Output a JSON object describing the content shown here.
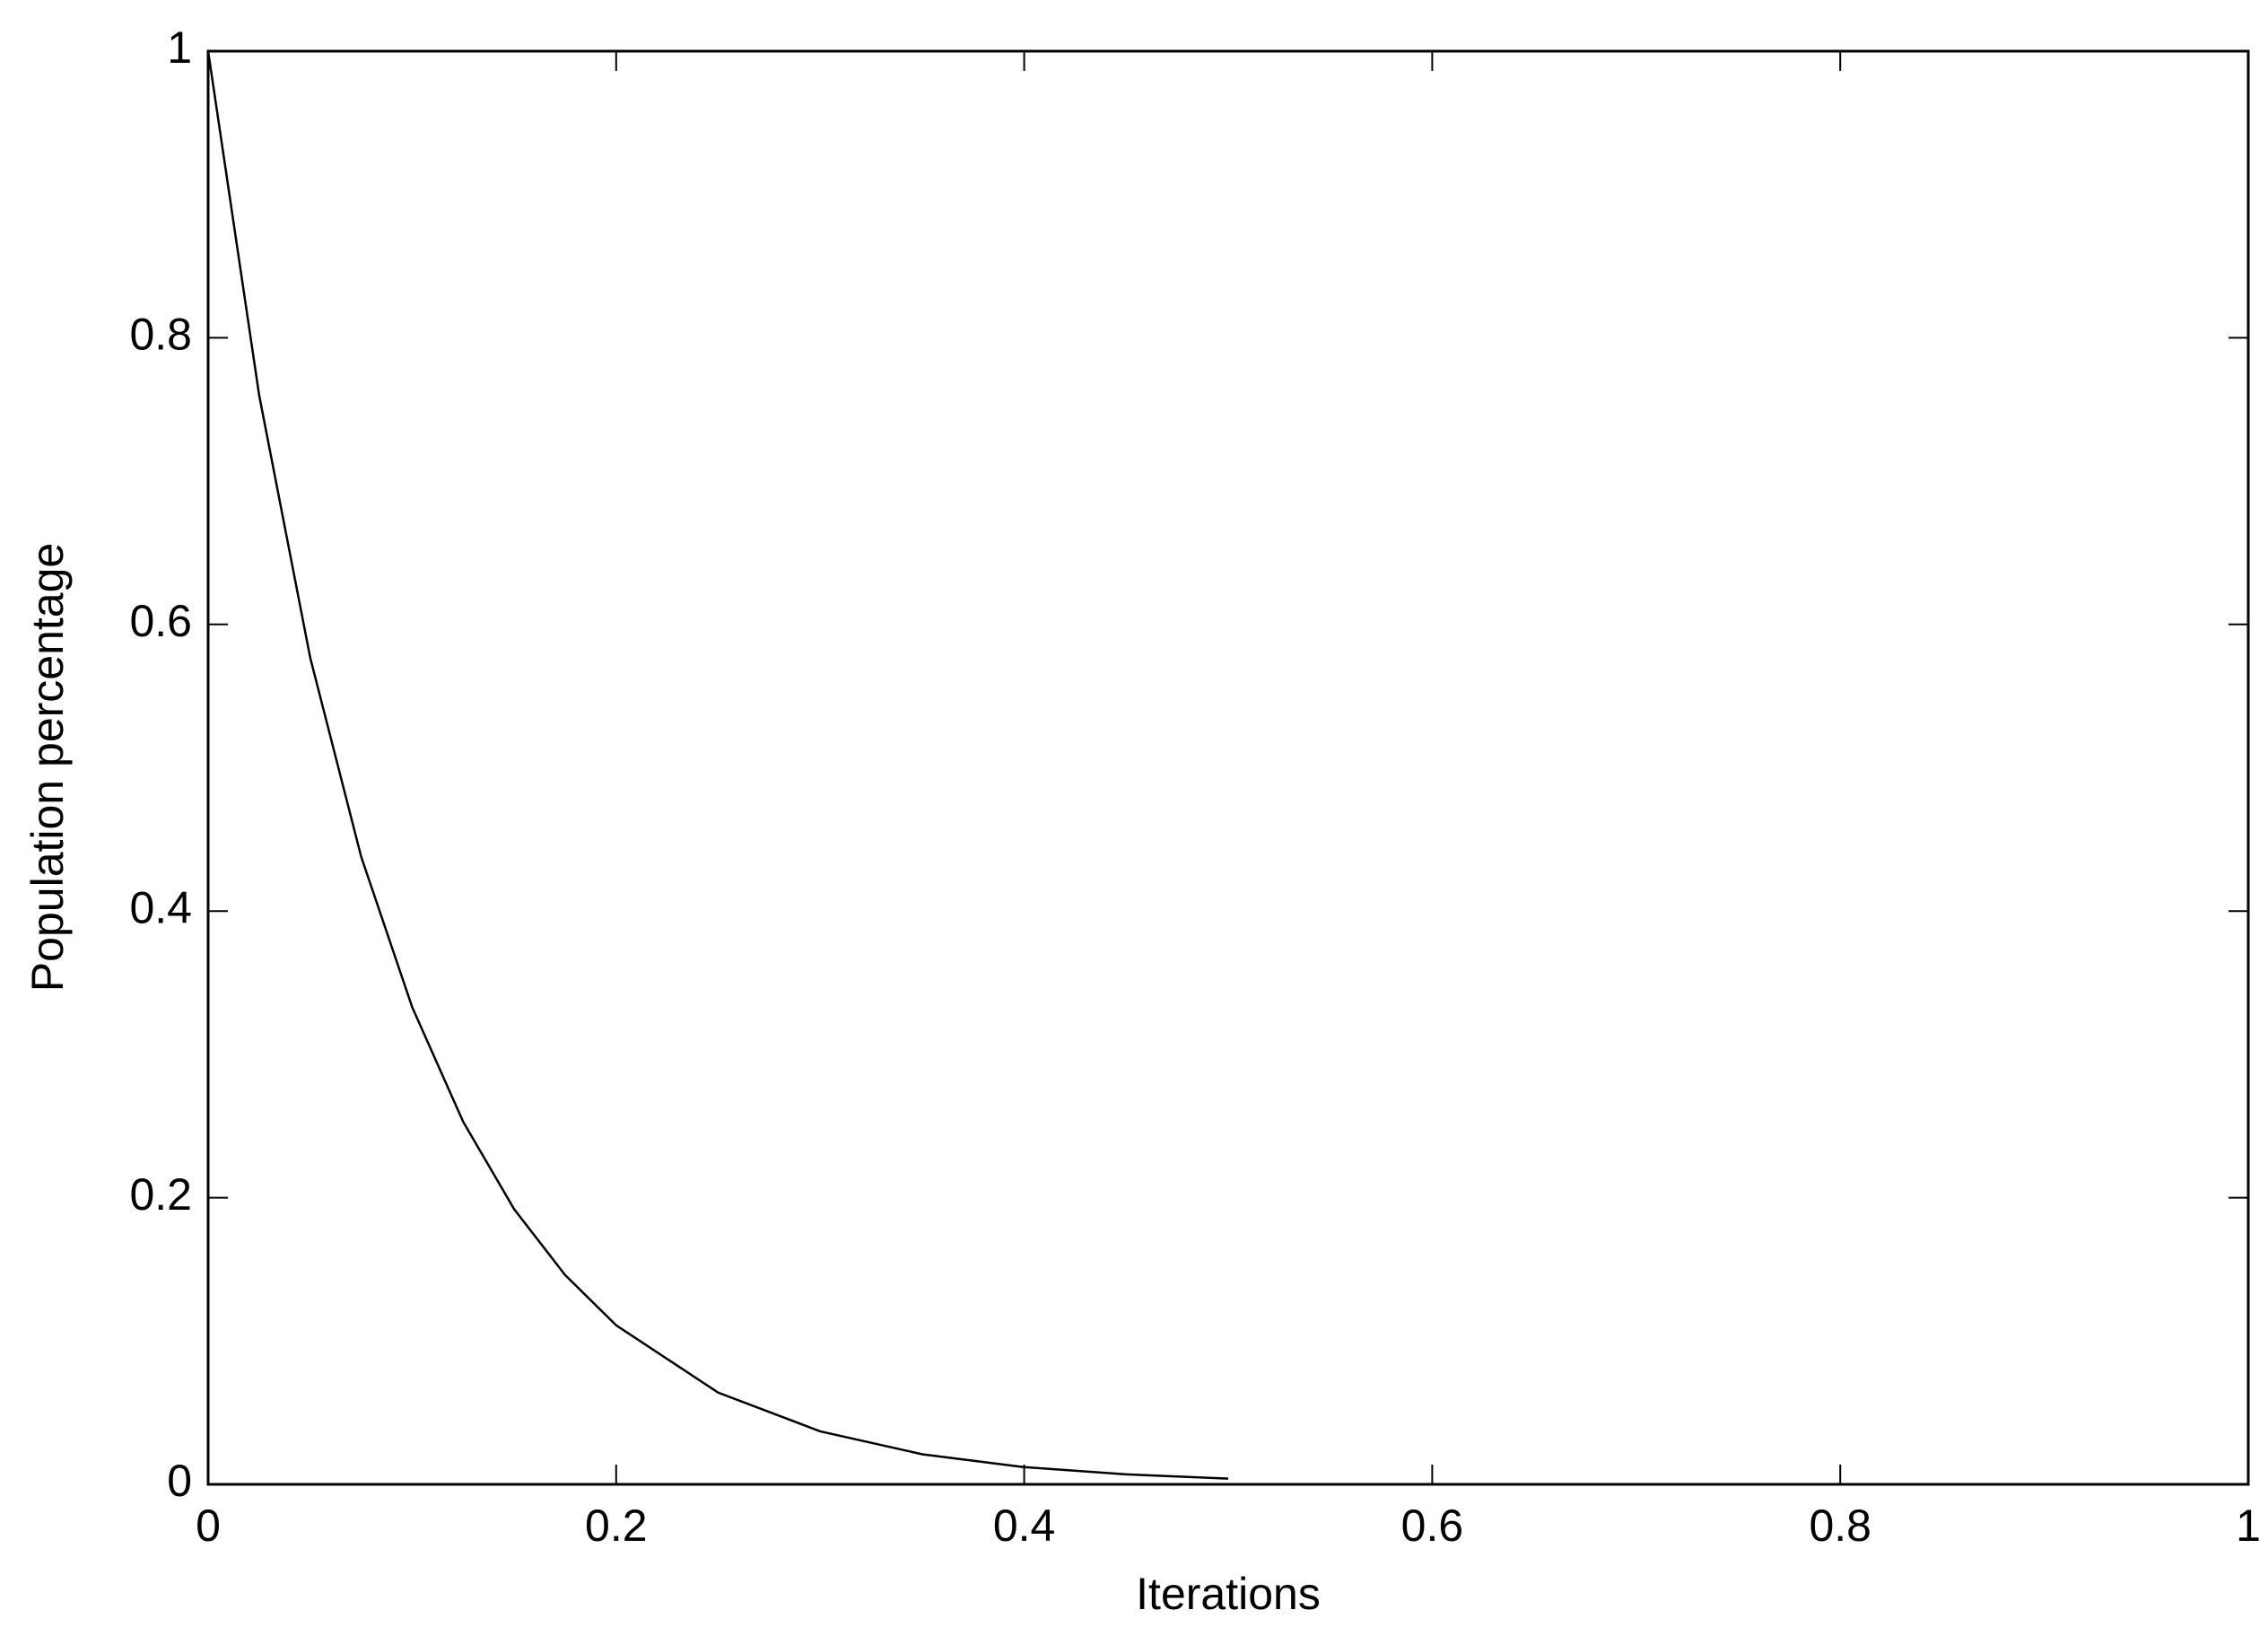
{
  "chart_data": {
    "type": "line",
    "x_label": "Iterations",
    "y_label": "Population percentage",
    "x": [
      0,
      0.025,
      0.05,
      0.075,
      0.1,
      0.125,
      0.15,
      0.175,
      0.2,
      0.25,
      0.3,
      0.35,
      0.4,
      0.45,
      0.5
    ],
    "series": [
      {
        "color": "#000000",
        "values": [
          1,
          0.76,
          0.577,
          0.438,
          0.333,
          0.253,
          0.192,
          0.146,
          0.111,
          0.064,
          0.037,
          0.021,
          0.012,
          0.007,
          0.004
        ]
      }
    ],
    "xlim": [
      0,
      1
    ],
    "ylim": [
      0,
      1
    ],
    "xticks": [
      0,
      0.2,
      0.4,
      0.6,
      0.8,
      1
    ],
    "yticks": [
      0,
      0.2,
      0.4,
      0.6,
      0.8,
      1
    ],
    "grid": false
  }
}
